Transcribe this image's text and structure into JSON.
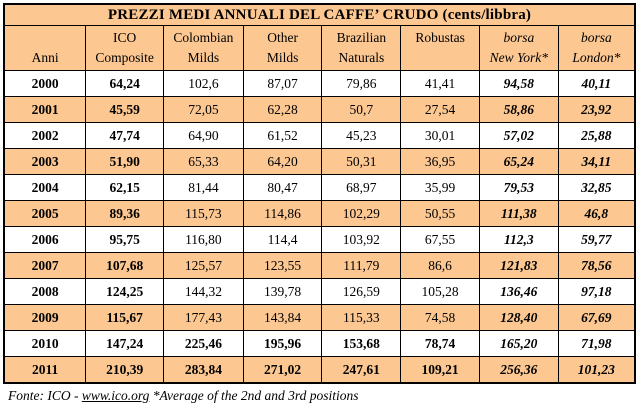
{
  "chart_data": {
    "type": "table",
    "title": "PREZZI MEDI ANNUALI DEL CAFFE’ CRUDO (cents/libbra)",
    "columns": [
      {
        "label": "Anni",
        "italic": false
      },
      {
        "label": "ICO\nComposite",
        "italic": false
      },
      {
        "label": "Colombian\nMilds",
        "italic": false
      },
      {
        "label": "Other\nMilds",
        "italic": false
      },
      {
        "label": "Brazilian\nNaturals",
        "italic": false
      },
      {
        "label": "Robustas",
        "italic": false
      },
      {
        "label": "borsa\nNew York*",
        "italic": true
      },
      {
        "label": "borsa\nLondon*",
        "italic": true
      }
    ],
    "rows": [
      {
        "year": "2000",
        "values": [
          "64,24",
          "102,6",
          "87,07",
          "79,86",
          "41,41",
          "94,58",
          "40,11"
        ],
        "shaded": false,
        "bold": false
      },
      {
        "year": "2001",
        "values": [
          "45,59",
          "72,05",
          "62,28",
          "50,7",
          "27,54",
          "58,86",
          "23,92"
        ],
        "shaded": true,
        "bold": false
      },
      {
        "year": "2002",
        "values": [
          "47,74",
          "64,90",
          "61,52",
          "45,23",
          "30,01",
          "57,02",
          "25,88"
        ],
        "shaded": false,
        "bold": false
      },
      {
        "year": "2003",
        "values": [
          "51,90",
          "65,33",
          "64,20",
          "50,31",
          "36,95",
          "65,24",
          "34,11"
        ],
        "shaded": true,
        "bold": false
      },
      {
        "year": "2004",
        "values": [
          "62,15",
          "81,44",
          "80,47",
          "68,97",
          "35,99",
          "79,53",
          "32,85"
        ],
        "shaded": false,
        "bold": false
      },
      {
        "year": "2005",
        "values": [
          "89,36",
          "115,73",
          "114,86",
          "102,29",
          "50,55",
          "111,38",
          "46,8"
        ],
        "shaded": true,
        "bold": false
      },
      {
        "year": "2006",
        "values": [
          "95,75",
          "116,80",
          "114,4",
          "103,92",
          "67,55",
          "112,3",
          "59,77"
        ],
        "shaded": false,
        "bold": false
      },
      {
        "year": "2007",
        "values": [
          "107,68",
          "125,57",
          "123,55",
          "111,79",
          "86,6",
          "121,83",
          "78,56"
        ],
        "shaded": true,
        "bold": false
      },
      {
        "year": "2008",
        "values": [
          "124,25",
          "144,32",
          "139,78",
          "126,59",
          "105,28",
          "136,46",
          "97,18"
        ],
        "shaded": false,
        "bold": false
      },
      {
        "year": "2009",
        "values": [
          "115,67",
          "177,43",
          "143,84",
          "115,33",
          "74,58",
          "128,40",
          "67,69"
        ],
        "shaded": true,
        "bold": false
      },
      {
        "year": "2010",
        "values": [
          "147,24",
          "225,46",
          "195,96",
          "153,68",
          "78,74",
          "165,20",
          "71,98"
        ],
        "shaded": false,
        "bold": true
      },
      {
        "year": "2011",
        "values": [
          "210,39",
          "283,84",
          "271,02",
          "247,61",
          "109,21",
          "256,36",
          "101,23"
        ],
        "shaded": true,
        "bold": true
      }
    ]
  },
  "footer": {
    "prefix": "Fonte: ICO - ",
    "link": "www.ico.org",
    "suffix": " *Average of the 2nd and 3rd positions"
  },
  "colors": {
    "shade": "#fcc791",
    "border": "#000000"
  }
}
